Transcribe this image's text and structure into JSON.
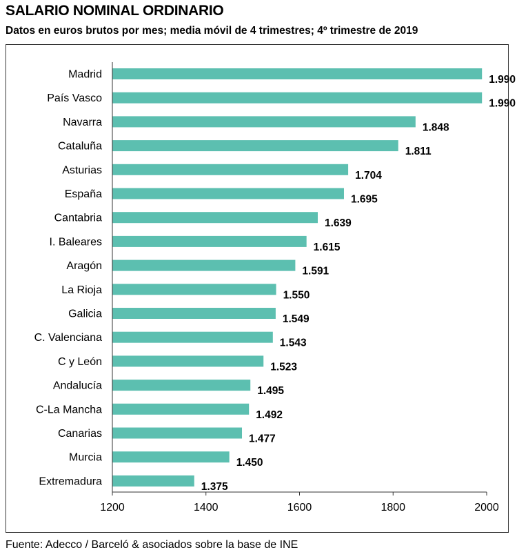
{
  "header": {
    "title": "SALARIO NOMINAL ORDINARIO",
    "subtitle": "Datos en euros brutos por mes; media móvil de 4 trimestres; 4º trimestre de 2019"
  },
  "footer": {
    "source": "Fuente: Adecco / Barceló & asociados sobre la base de INE"
  },
  "colors": {
    "bar": "#5cbfb0",
    "axis": "#333333"
  },
  "chart_data": {
    "type": "bar",
    "orientation": "horizontal",
    "title": "SALARIO NOMINAL ORDINARIO",
    "subtitle": "Datos en euros brutos por mes; media móvil de 4 trimestres; 4º trimestre de 2019",
    "categories": [
      "Madrid",
      "País Vasco",
      "Navarra",
      "Cataluña",
      "Asturias",
      "España",
      "Cantabria",
      "I. Baleares",
      "Aragón",
      "La Rioja",
      "Galicia",
      "C. Valenciana",
      "C y León",
      "Andalucía",
      "C-La Mancha",
      "Canarias",
      "Murcia",
      "Extremadura"
    ],
    "values": [
      1990,
      1990,
      1848,
      1811,
      1704,
      1695,
      1639,
      1615,
      1591,
      1550,
      1549,
      1543,
      1523,
      1495,
      1492,
      1477,
      1450,
      1375
    ],
    "value_labels": [
      "1.990",
      "1.990",
      "1.848",
      "1.811",
      "1.704",
      "1.695",
      "1.639",
      "1.615",
      "1.591",
      "1.550",
      "1.549",
      "1.543",
      "1.523",
      "1.495",
      "1.492",
      "1.477",
      "1.450",
      "1.375"
    ],
    "xlim": [
      1200,
      2000
    ],
    "xticks": [
      1200,
      1400,
      1600,
      1800,
      2000
    ],
    "grid": false,
    "legend": "none"
  }
}
